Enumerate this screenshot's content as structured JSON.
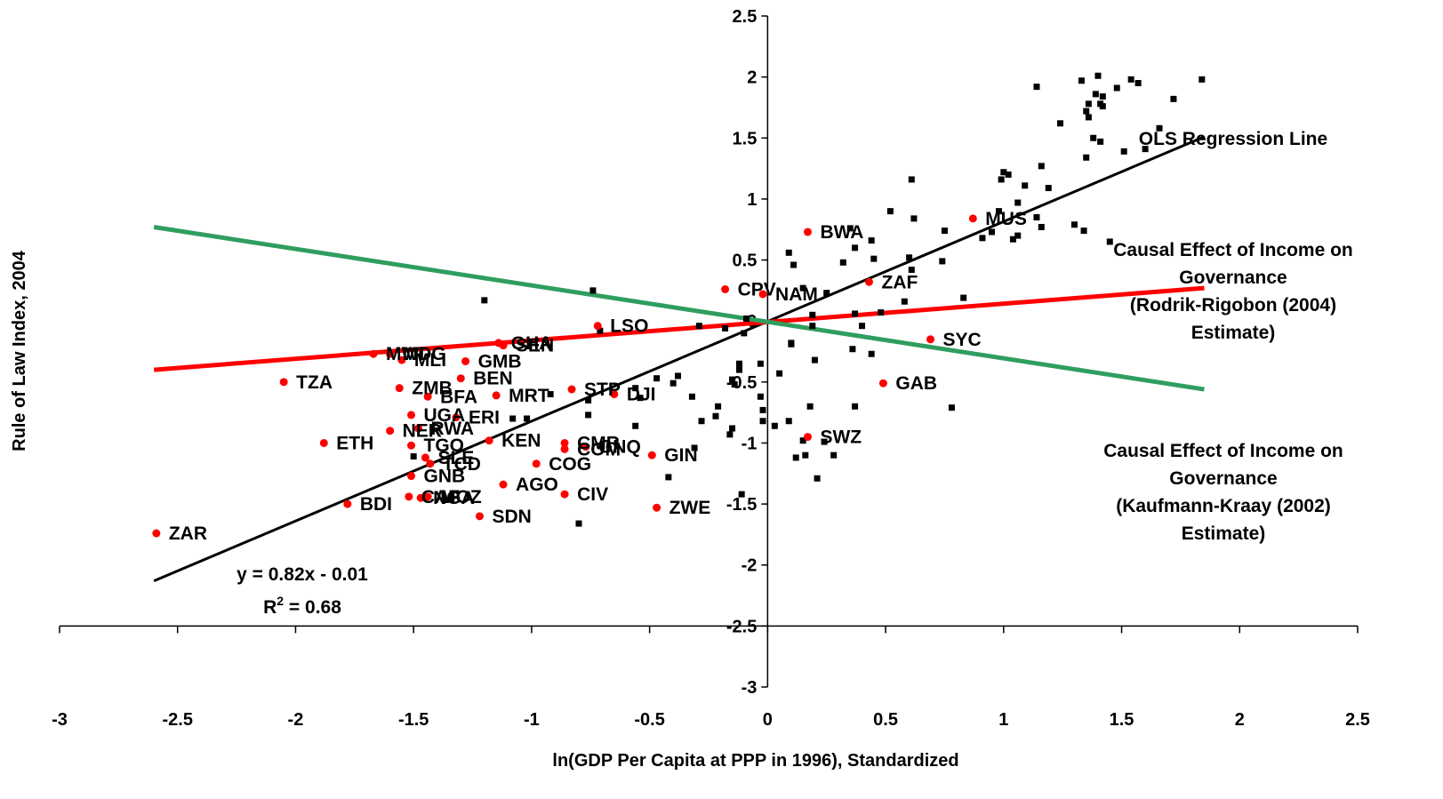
{
  "chart_data": {
    "type": "scatter",
    "xlabel": "ln(GDP Per Capita at PPP in 1996), Standardized",
    "ylabel": "Rule of Law Index, 2004",
    "xlim": [
      -3,
      2.5
    ],
    "ylim": [
      -3,
      2.5
    ],
    "x_ticks": [
      "-3",
      "-2.5",
      "-2",
      "-1.5",
      "-1",
      "-0.5",
      "0",
      "0.5",
      "1",
      "1.5",
      "2",
      "2.5"
    ],
    "y_ticks": [
      "-3",
      "-2.5",
      "-2",
      "-1.5",
      "-1",
      "-0.5",
      "0",
      "0.5",
      "1",
      "1.5",
      "2",
      "2.5"
    ],
    "grid": false,
    "colors": {
      "africa": "#ff0000",
      "others": "#000000",
      "ols": "#000000",
      "rodrik": "#ff0000",
      "kaufmann": "#2e9e5e"
    },
    "annotations": {
      "equation": "y = 0.82x - 0.01",
      "r2_prefix": "R",
      "r2_sup": "2",
      "r2_suffix": " = 0.68",
      "ols_label": "OLS Regression Line",
      "rodrik_label": [
        "Causal Effect of Income on",
        "Governance",
        "(Rodrik-Rigobon (2004)",
        "Estimate)"
      ],
      "kaufmann_label": [
        "Causal Effect of Income on",
        "Governance",
        "(Kaufmann-Kraay (2002)",
        "Estimate)"
      ]
    },
    "lines": [
      {
        "label": "OLS Regression Line",
        "x": [
          -2.6,
          1.85
        ],
        "y": [
          -2.13,
          1.51
        ]
      },
      {
        "label": "Rodrik-Rigobon (2004)",
        "x": [
          -2.6,
          1.85
        ],
        "y": [
          -0.4,
          0.27
        ]
      },
      {
        "label": "Kaufmann-Kraay (2002)",
        "x": [
          -2.6,
          1.85
        ],
        "y": [
          0.77,
          -0.56
        ]
      }
    ],
    "series": [
      {
        "name": "",
        "marker": "circle",
        "points": [
          {
            "label": "ZAR",
            "x": -2.59,
            "y": -1.74
          },
          {
            "label": "TZA",
            "x": -2.05,
            "y": -0.5
          },
          {
            "label": "ETH",
            "x": -1.88,
            "y": -1.0
          },
          {
            "label": "BDI",
            "x": -1.78,
            "y": -1.5
          },
          {
            "label": "MWI",
            "x": -1.67,
            "y": -0.27
          },
          {
            "label": "MDG",
            "x": -1.6,
            "y": -0.27
          },
          {
            "label": "MLI",
            "x": -1.55,
            "y": -0.32
          },
          {
            "label": "ZMB",
            "x": -1.56,
            "y": -0.55
          },
          {
            "label": "NER",
            "x": -1.6,
            "y": -0.9
          },
          {
            "label": "UGA",
            "x": -1.51,
            "y": -0.77
          },
          {
            "label": "RWA",
            "x": -1.48,
            "y": -0.88
          },
          {
            "label": "TGO",
            "x": -1.51,
            "y": -1.02
          },
          {
            "label": "SLE",
            "x": -1.45,
            "y": -1.12
          },
          {
            "label": "TCD",
            "x": -1.43,
            "y": -1.17
          },
          {
            "label": "GNB",
            "x": -1.51,
            "y": -1.27
          },
          {
            "label": "CAF",
            "x": -1.52,
            "y": -1.44
          },
          {
            "label": "MOZ",
            "x": -1.44,
            "y": -1.44
          },
          {
            "label": "NGA",
            "x": -1.47,
            "y": -1.45
          },
          {
            "label": "BFA",
            "x": -1.44,
            "y": -0.62
          },
          {
            "label": "BEN",
            "x": -1.3,
            "y": -0.47
          },
          {
            "label": "GMB",
            "x": -1.28,
            "y": -0.33
          },
          {
            "label": "ERI",
            "x": -1.32,
            "y": -0.79
          },
          {
            "label": "KEN",
            "x": -1.18,
            "y": -0.98
          },
          {
            "label": "GHA",
            "x": -1.14,
            "y": -0.18
          },
          {
            "label": "SEN",
            "x": -1.12,
            "y": -0.2
          },
          {
            "label": "MRT",
            "x": -1.15,
            "y": -0.61
          },
          {
            "label": "AGO",
            "x": -1.12,
            "y": -1.34
          },
          {
            "label": "SDN",
            "x": -1.22,
            "y": -1.6
          },
          {
            "label": "COG",
            "x": -0.98,
            "y": -1.17
          },
          {
            "label": "CMR",
            "x": -0.86,
            "y": -1.0
          },
          {
            "label": "COM",
            "x": -0.86,
            "y": -1.05
          },
          {
            "label": "GNQ",
            "x": -0.77,
            "y": -1.03
          },
          {
            "label": "CIV",
            "x": -0.86,
            "y": -1.42
          },
          {
            "label": "STP",
            "x": -0.83,
            "y": -0.56
          },
          {
            "label": "DJI",
            "x": -0.65,
            "y": -0.6
          },
          {
            "label": "LSO",
            "x": -0.72,
            "y": -0.04
          },
          {
            "label": "GIN",
            "x": -0.49,
            "y": -1.1
          },
          {
            "label": "ZWE",
            "x": -0.47,
            "y": -1.53
          },
          {
            "label": "CPV",
            "x": -0.18,
            "y": 0.26
          },
          {
            "label": "NAM",
            "x": -0.02,
            "y": 0.22
          },
          {
            "label": "BWA",
            "x": 0.17,
            "y": 0.73
          },
          {
            "label": "ZAF",
            "x": 0.43,
            "y": 0.32
          },
          {
            "label": "SYC",
            "x": 0.69,
            "y": -0.15
          },
          {
            "label": "GAB",
            "x": 0.49,
            "y": -0.51
          },
          {
            "label": "SWZ",
            "x": 0.17,
            "y": -0.95
          },
          {
            "label": "MUS",
            "x": 0.87,
            "y": 0.84
          }
        ]
      },
      {
        "name": "",
        "marker": "square",
        "points": [
          [
            1.84,
            1.98
          ],
          [
            1.72,
            1.82
          ],
          [
            1.66,
            1.58
          ],
          [
            1.57,
            1.95
          ],
          [
            1.54,
            1.98
          ],
          [
            1.48,
            1.91
          ],
          [
            1.42,
            1.84
          ],
          [
            1.41,
            1.78
          ],
          [
            1.39,
            1.86
          ],
          [
            1.36,
            1.78
          ],
          [
            1.36,
            1.67
          ],
          [
            1.35,
            1.72
          ],
          [
            1.33,
            1.97
          ],
          [
            1.4,
            2.01
          ],
          [
            1.42,
            1.76
          ],
          [
            1.41,
            1.47
          ],
          [
            1.38,
            1.5
          ],
          [
            1.35,
            1.34
          ],
          [
            1.51,
            1.39
          ],
          [
            1.6,
            1.41
          ],
          [
            1.24,
            1.62
          ],
          [
            1.14,
            1.92
          ],
          [
            1.16,
            1.27
          ],
          [
            1.19,
            1.09
          ],
          [
            1.09,
            1.11
          ],
          [
            1.06,
            0.97
          ],
          [
            1.0,
            1.22
          ],
          [
            1.02,
            1.2
          ],
          [
            0.99,
            1.16
          ],
          [
            0.98,
            0.9
          ],
          [
            1.04,
            0.67
          ],
          [
            1.06,
            0.7
          ],
          [
            1.14,
            0.85
          ],
          [
            1.16,
            0.77
          ],
          [
            1.3,
            0.79
          ],
          [
            1.34,
            0.74
          ],
          [
            1.45,
            0.65
          ],
          [
            0.95,
            0.73
          ],
          [
            0.91,
            0.68
          ],
          [
            0.75,
            0.74
          ],
          [
            0.74,
            0.49
          ],
          [
            0.62,
            0.84
          ],
          [
            0.6,
            0.52
          ],
          [
            0.61,
            0.42
          ],
          [
            0.61,
            1.16
          ],
          [
            0.52,
            0.9
          ],
          [
            0.45,
            0.51
          ],
          [
            0.44,
            0.66
          ],
          [
            0.37,
            0.6
          ],
          [
            0.32,
            0.48
          ],
          [
            0.35,
            0.76
          ],
          [
            0.25,
            0.23
          ],
          [
            0.15,
            0.27
          ],
          [
            0.11,
            0.46
          ],
          [
            0.09,
            0.56
          ],
          [
            0.83,
            0.19
          ],
          [
            0.58,
            0.16
          ],
          [
            0.48,
            0.07
          ],
          [
            0.37,
            0.06
          ],
          [
            0.44,
            -0.27
          ],
          [
            0.36,
            -0.23
          ],
          [
            0.4,
            -0.04
          ],
          [
            0.19,
            0.05
          ],
          [
            0.19,
            -0.04
          ],
          [
            0.1,
            -0.19
          ],
          [
            0.1,
            -0.18
          ],
          [
            0.2,
            -0.32
          ],
          [
            0.05,
            -0.43
          ],
          [
            -0.03,
            -0.35
          ],
          [
            -0.03,
            -0.62
          ],
          [
            -0.02,
            -0.73
          ],
          [
            -0.02,
            -0.82
          ],
          [
            0.03,
            -0.86
          ],
          [
            0.09,
            -0.82
          ],
          [
            0.15,
            -0.98
          ],
          [
            0.12,
            -1.12
          ],
          [
            0.16,
            -1.1
          ],
          [
            0.18,
            -0.7
          ],
          [
            0.21,
            -1.29
          ],
          [
            0.24,
            -0.99
          ],
          [
            0.28,
            -1.1
          ],
          [
            0.37,
            -0.7
          ],
          [
            0.78,
            -0.71
          ],
          [
            -0.1,
            -0.1
          ],
          [
            -0.12,
            -0.35
          ],
          [
            -0.12,
            -0.4
          ],
          [
            -0.15,
            -0.48
          ],
          [
            -0.14,
            -0.52
          ],
          [
            -0.15,
            -0.88
          ],
          [
            -0.16,
            -0.93
          ],
          [
            -0.18,
            -0.06
          ],
          [
            -0.21,
            -0.7
          ],
          [
            -0.22,
            -0.78
          ],
          [
            -0.28,
            -0.82
          ],
          [
            -0.31,
            -1.04
          ],
          [
            -0.32,
            -0.62
          ],
          [
            -0.38,
            -0.45
          ],
          [
            -0.4,
            -0.51
          ],
          [
            -0.47,
            -0.47
          ],
          [
            -0.42,
            -1.28
          ],
          [
            -0.11,
            -1.42
          ],
          [
            -0.09,
            0.02
          ],
          [
            -0.29,
            -0.04
          ],
          [
            -0.56,
            -0.55
          ],
          [
            -0.54,
            -0.63
          ],
          [
            -0.56,
            -0.86
          ],
          [
            -0.74,
            0.25
          ],
          [
            -0.71,
            -0.08
          ],
          [
            -0.76,
            -0.65
          ],
          [
            -0.76,
            -0.77
          ],
          [
            -0.8,
            -1.66
          ],
          [
            -0.92,
            -0.6
          ],
          [
            -1.02,
            -0.8
          ],
          [
            -1.08,
            -0.8
          ],
          [
            -1.2,
            0.17
          ],
          [
            -1.5,
            -1.11
          ]
        ]
      }
    ]
  }
}
